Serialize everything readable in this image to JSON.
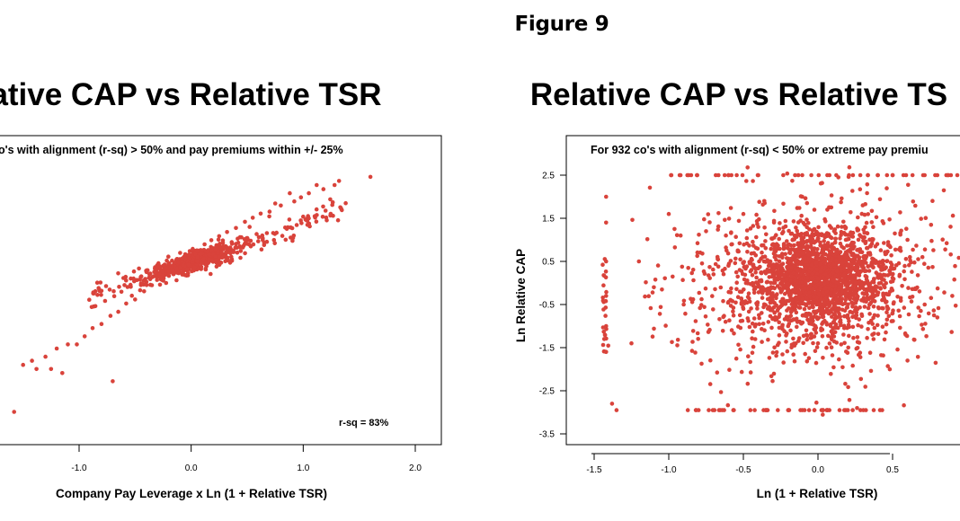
{
  "figure_title": "Figure 9",
  "charts": {
    "left": {
      "title": "ative CAP vs Relative TSR",
      "note": "o's with alignment (r-sq) > 50% and pay premiums within +/- 25%",
      "xlabel": "Company Pay Leverage x Ln (1 + Relative TSR)",
      "x_ticks": [
        "-1.0",
        "0.0",
        "1.0",
        "2.0"
      ],
      "annotation": "r-sq = 83%"
    },
    "right": {
      "title": "Relative CAP vs Relative TS",
      "note": "For 932 co's with alignment (r-sq) < 50% or extreme pay premiu",
      "xlabel": "Ln (1 + Relative TSR)",
      "ylabel": "Ln Relative CAP",
      "x_ticks": [
        "-1.5",
        "-1.0",
        "-0.5",
        "0.0",
        "0.5"
      ],
      "y_ticks": [
        "2.5",
        "1.5",
        "0.5",
        "-0.5",
        "-1.5",
        "-2.5",
        "-3.5"
      ]
    }
  },
  "chart_data": [
    {
      "type": "scatter",
      "title": "ative CAP vs Relative TSR",
      "subtitle": "o's with alignment (r-sq) > 50% and pay premiums within +/- 25%",
      "xlabel": "Company Pay Leverage x Ln (1 + Relative TSR)",
      "ylabel": "",
      "x_ticks": [
        -1.0,
        0.0,
        1.0,
        2.0
      ],
      "xlim": [
        -1.55,
        2.22
      ],
      "ylim": [
        -3.6,
        3.1
      ],
      "annotations": [
        "r-sq = 83%"
      ],
      "color": "#d9433b",
      "series": [
        {
          "x": [
            1.6,
            1.32,
            1.28,
            1.18,
            1.12,
            1.05,
            0.98,
            0.92,
            0.88,
            0.8,
            0.75,
            0.7,
            0.62,
            0.55,
            0.48,
            0.4,
            0.32,
            0.25,
            0.18,
            0.12,
            0.05,
            -0.02,
            -0.08,
            -0.15,
            -0.2,
            -0.28,
            -0.35,
            -0.42,
            -0.5,
            -0.58,
            -0.65,
            -0.72,
            -0.8,
            -0.88,
            -0.95,
            -1.02,
            -1.1,
            -1.2,
            -1.3,
            -1.42,
            -1.5,
            -1.38,
            -1.25,
            -1.15,
            -0.7,
            -1.58
          ],
          "y": [
            2.2,
            2.1,
            2.0,
            1.9,
            2.0,
            1.8,
            1.7,
            1.6,
            1.8,
            1.5,
            1.55,
            1.35,
            1.3,
            1.2,
            1.1,
            0.95,
            0.85,
            0.75,
            0.65,
            0.55,
            0.4,
            0.3,
            0.2,
            0.1,
            -0.1,
            -0.25,
            -0.45,
            -0.6,
            -0.8,
            -0.9,
            -1.1,
            -1.2,
            -1.4,
            -1.5,
            -1.7,
            -1.9,
            -1.9,
            -2.0,
            -2.2,
            -2.3,
            -2.4,
            -2.5,
            -2.5,
            -2.6,
            -2.8,
            -3.55
          ]
        }
      ]
    },
    {
      "type": "scatter",
      "title": "Relative CAP vs Relative TS",
      "subtitle": "For 932 co's with alignment (r-sq) < 50% or extreme pay premiu",
      "xlabel": "Ln (1 + Relative TSR)",
      "ylabel": "Ln Relative CAP",
      "x_ticks": [
        -1.5,
        -1.0,
        -0.5,
        0.0,
        0.5
      ],
      "y_ticks": [
        2.5,
        1.5,
        0.5,
        -0.5,
        -1.5,
        -2.5,
        -3.5
      ],
      "xlim": [
        -1.78,
        1.02
      ],
      "ylim": [
        -3.95,
        3.1
      ],
      "color": "#d9433b",
      "series": [
        {
          "x": [
            -1.42,
            -1.42,
            -1.42,
            -1.42,
            -1.42,
            -1.42,
            -1.38,
            -1.35,
            -1.25,
            -1.2,
            -1.1,
            -1.0,
            -0.9,
            -0.85,
            -0.8,
            -0.75,
            -0.7,
            -0.6,
            -0.5,
            -0.4,
            -0.3,
            -0.2,
            -0.1,
            0.0,
            0.1,
            0.2,
            0.3,
            0.4,
            0.5,
            0.6,
            0.7,
            0.8,
            0.9,
            -0.6,
            -0.4,
            -0.2,
            0.2,
            0.4,
            0.6,
            0.8,
            -0.5,
            0.0,
            0.5
          ],
          "y": [
            2.0,
            1.4,
            0.5,
            -0.3,
            -1.0,
            -1.6,
            -2.8,
            -2.95,
            -1.4,
            0.5,
            -0.1,
            1.6,
            -0.5,
            2.5,
            -2.95,
            1.2,
            0.2,
            0.4,
            -0.6,
            1.3,
            0.9,
            -1.0,
            0.3,
            0.1,
            -0.4,
            0.6,
            1.8,
            0.2,
            -0.7,
            1.0,
            0.6,
            2.5,
            -0.3,
            2.5,
            2.5,
            -2.95,
            -2.95,
            2.5,
            -1.8,
            -0.8,
            1.6,
            -1.4,
            2.5
          ]
        }
      ]
    }
  ]
}
